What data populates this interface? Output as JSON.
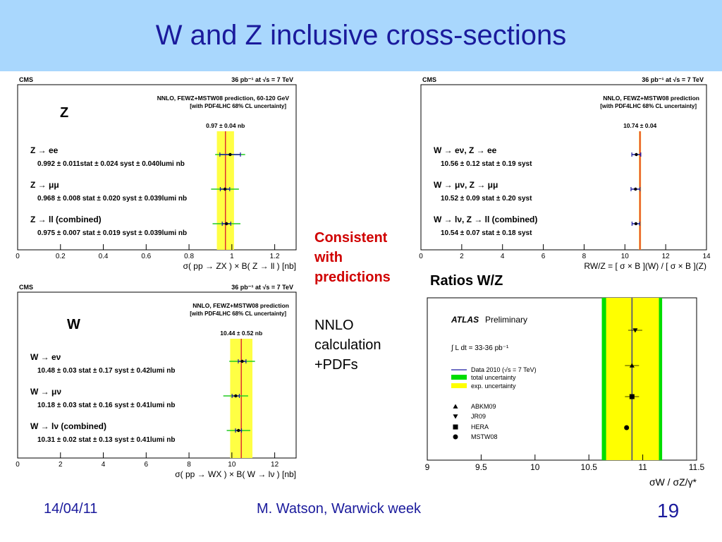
{
  "slide": {
    "title": "W and Z inclusive cross-sections",
    "side_note_red": [
      "Consistent",
      "with",
      "predictions"
    ],
    "side_note": [
      "NNLO",
      "calculation",
      "+PDFs"
    ],
    "ratios_label": "Ratios W/Z",
    "footer_date": "14/04/11",
    "footer_author": "M. Watson, Warwick week",
    "page_number": "19"
  },
  "chart_data": [
    {
      "type": "scatter",
      "name_label": "Z",
      "header_left": "CMS",
      "header_right": "36 pb⁻¹ at √s = 7 TeV",
      "prediction_label": "NNLO, FEWZ+MSTW08 prediction, 60-120 GeV",
      "prediction_sub": "[with PDF4LHC 68% CL uncertainty]",
      "prediction_value": "0.97 ± 0.04 nb",
      "prediction": {
        "value": 0.97,
        "band": [
          0.93,
          1.01
        ]
      },
      "xlabel": "σ( pp → ZX ) × B( Z → ll )  [nb]",
      "xlim": [
        0,
        1.3
      ],
      "xticks": [
        "0",
        "0.2",
        "0.4",
        "0.6",
        "0.8",
        "1",
        "1.2"
      ],
      "xtick_values": [
        0,
        0.2,
        0.4,
        0.6,
        0.8,
        1.0,
        1.2
      ],
      "measurements": [
        {
          "channel": "Z → ee",
          "result": "0.992 ± 0.011stat ± 0.024 syst ± 0.040lumi nb",
          "value": 0.992,
          "stat": 0.011,
          "total": 0.048,
          "lumi": 0.07
        },
        {
          "channel": "Z → μμ",
          "result": "0.968 ± 0.008 stat ± 0.020 syst ± 0.039lumi nb",
          "value": 0.968,
          "stat": 0.008,
          "total": 0.022,
          "lumi": 0.065
        },
        {
          "channel": "Z → ll  (combined)",
          "result": "0.975 ± 0.007 stat ± 0.019 syst ± 0.039lumi nb",
          "value": 0.975,
          "stat": 0.007,
          "total": 0.02,
          "lumi": 0.065
        }
      ]
    },
    {
      "type": "scatter",
      "header_left": "CMS",
      "header_right": "36 pb⁻¹ at √s = 7 TeV",
      "prediction_label": "NNLO, FEWZ+MSTW08 prediction",
      "prediction_sub": "[with PDF4LHC 68% CL uncertainty]",
      "prediction_value": "10.74 ± 0.04",
      "prediction": {
        "value": 10.74,
        "band": [
          10.7,
          10.78
        ]
      },
      "xlabel": "RW/Z = [ σ × B ](W) / [ σ × B ](Z)",
      "xlim": [
        0,
        14
      ],
      "xticks": [
        "0",
        "2",
        "4",
        "6",
        "8",
        "10",
        "12",
        "14"
      ],
      "xtick_values": [
        0,
        2,
        4,
        6,
        8,
        10,
        12,
        14
      ],
      "measurements": [
        {
          "channel": "W → eν,  Z → ee",
          "result": "10.56 ± 0.12 stat ± 0.19 syst",
          "value": 10.56,
          "stat": 0.12,
          "total": 0.22
        },
        {
          "channel": "W → μν,  Z → μμ",
          "result": "10.52 ± 0.09 stat ± 0.20 syst",
          "value": 10.52,
          "stat": 0.09,
          "total": 0.22
        },
        {
          "channel": "W → lν,  Z → ll  (combined)",
          "result": "10.54 ± 0.07 stat ± 0.18 syst",
          "value": 10.54,
          "stat": 0.07,
          "total": 0.19
        }
      ]
    },
    {
      "type": "scatter",
      "name_label": "W",
      "header_left": "CMS",
      "header_right": "36 pb⁻¹ at √s = 7 TeV",
      "prediction_label": "NNLO, FEWZ+MSTW08 prediction",
      "prediction_sub": "[with PDF4LHC 68% CL uncertainty]",
      "prediction_value": "10.44 ± 0.52 nb",
      "prediction": {
        "value": 10.44,
        "band": [
          9.92,
          10.96
        ]
      },
      "xlabel": "σ( pp → WX ) × B( W → lν )  [nb]",
      "xlim": [
        0,
        13
      ],
      "xticks": [
        "0",
        "2",
        "4",
        "6",
        "8",
        "10",
        "12"
      ],
      "xtick_values": [
        0,
        2,
        4,
        6,
        8,
        10,
        12
      ],
      "measurements": [
        {
          "channel": "W → eν",
          "result": "10.48 ± 0.03 stat ± 0.17 syst ± 0.42lumi nb",
          "value": 10.48,
          "stat": 0.03,
          "total": 0.18,
          "lumi": 0.6
        },
        {
          "channel": "W → μν",
          "result": "10.18 ± 0.03 stat ± 0.16 syst ± 0.41lumi nb",
          "value": 10.18,
          "stat": 0.03,
          "total": 0.17,
          "lumi": 0.58
        },
        {
          "channel": "W → lν (combined)",
          "result": "10.31 ± 0.02 stat ± 0.13 syst ± 0.41lumi nb",
          "value": 10.31,
          "stat": 0.02,
          "total": 0.14,
          "lumi": 0.55
        }
      ]
    },
    {
      "type": "scatter",
      "experiment": "ATLAS",
      "experiment_sub": "Preliminary",
      "luminosity": "∫ L dt = 33-36 pb⁻¹",
      "legend": [
        "Data 2010 (√s = 7 TeV)",
        "total uncertainty",
        "exp. uncertainty"
      ],
      "xlabel": "σW / σZ/γ*",
      "xlim": [
        9,
        11.5
      ],
      "xticks": [
        "9",
        "9.5",
        "10",
        "10.5",
        "11",
        "11.5"
      ],
      "xtick_values": [
        9,
        9.5,
        10,
        10.5,
        11,
        11.5
      ],
      "data": {
        "value": 10.9,
        "exp_band": [
          10.66,
          11.15
        ],
        "total_band": [
          10.62,
          11.18
        ]
      },
      "predictions": [
        {
          "name": "ABKM09",
          "marker": "triangle-up",
          "value": 10.9
        },
        {
          "name": "JR09",
          "marker": "triangle-down",
          "value": 10.93
        },
        {
          "name": "HERA",
          "marker": "square",
          "value": 10.9
        },
        {
          "name": "MSTW08",
          "marker": "circle",
          "value": 10.85
        }
      ]
    }
  ]
}
